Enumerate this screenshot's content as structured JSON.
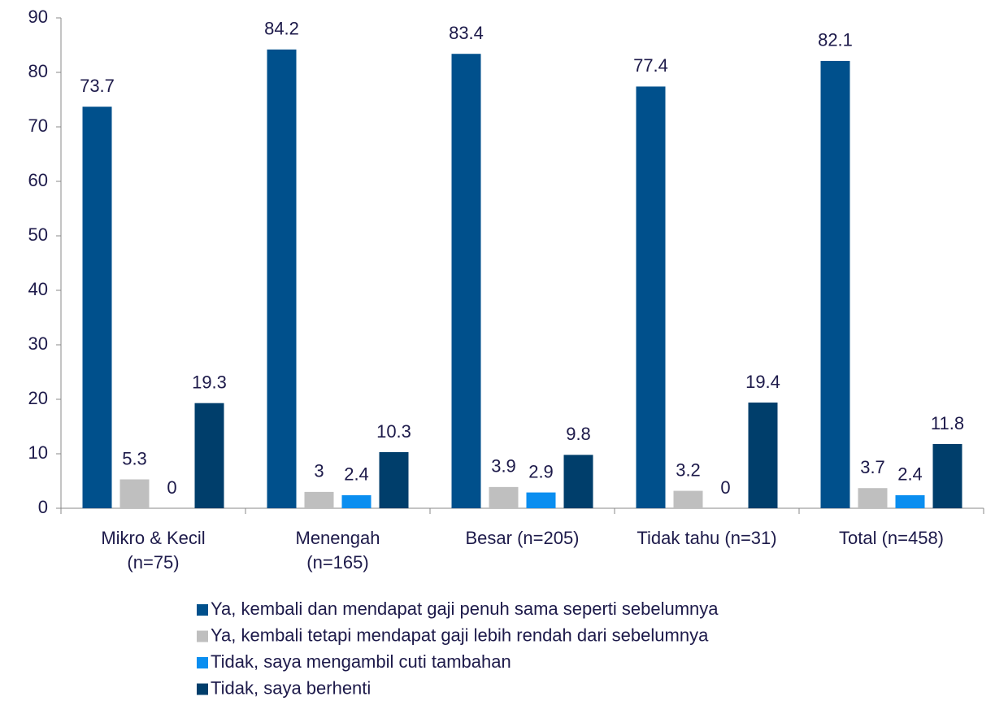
{
  "chart_data": {
    "type": "bar",
    "categories": [
      "Mikro & Kecil\n(n=75)",
      "Menengah\n(n=165)",
      "Besar (n=205)",
      "Tidak tahu (n=31)",
      "Total (n=458)"
    ],
    "series": [
      {
        "name": "Ya, kembali dan mendapat gaji penuh sama seperti sebelumnya",
        "color": "#00508c",
        "values": [
          73.7,
          84.2,
          83.4,
          77.4,
          82.1
        ]
      },
      {
        "name": "Ya, kembali tetapi mendapat gaji lebih rendah dari sebelumnya",
        "color": "#bfbfbf",
        "values": [
          5.3,
          3,
          3.9,
          3.2,
          3.7
        ]
      },
      {
        "name": "Tidak, saya mengambil cuti tambahan",
        "color": "#0a8ef0",
        "values": [
          0,
          2.4,
          2.9,
          0,
          2.4
        ]
      },
      {
        "name": "Tidak, saya berhenti",
        "color": "#003e6b",
        "values": [
          19.3,
          10.3,
          9.8,
          19.4,
          11.8
        ]
      }
    ],
    "ylim": [
      0,
      90
    ],
    "yticks": [
      0,
      10,
      20,
      30,
      40,
      50,
      60,
      70,
      80,
      90
    ],
    "legend": "bottom"
  }
}
